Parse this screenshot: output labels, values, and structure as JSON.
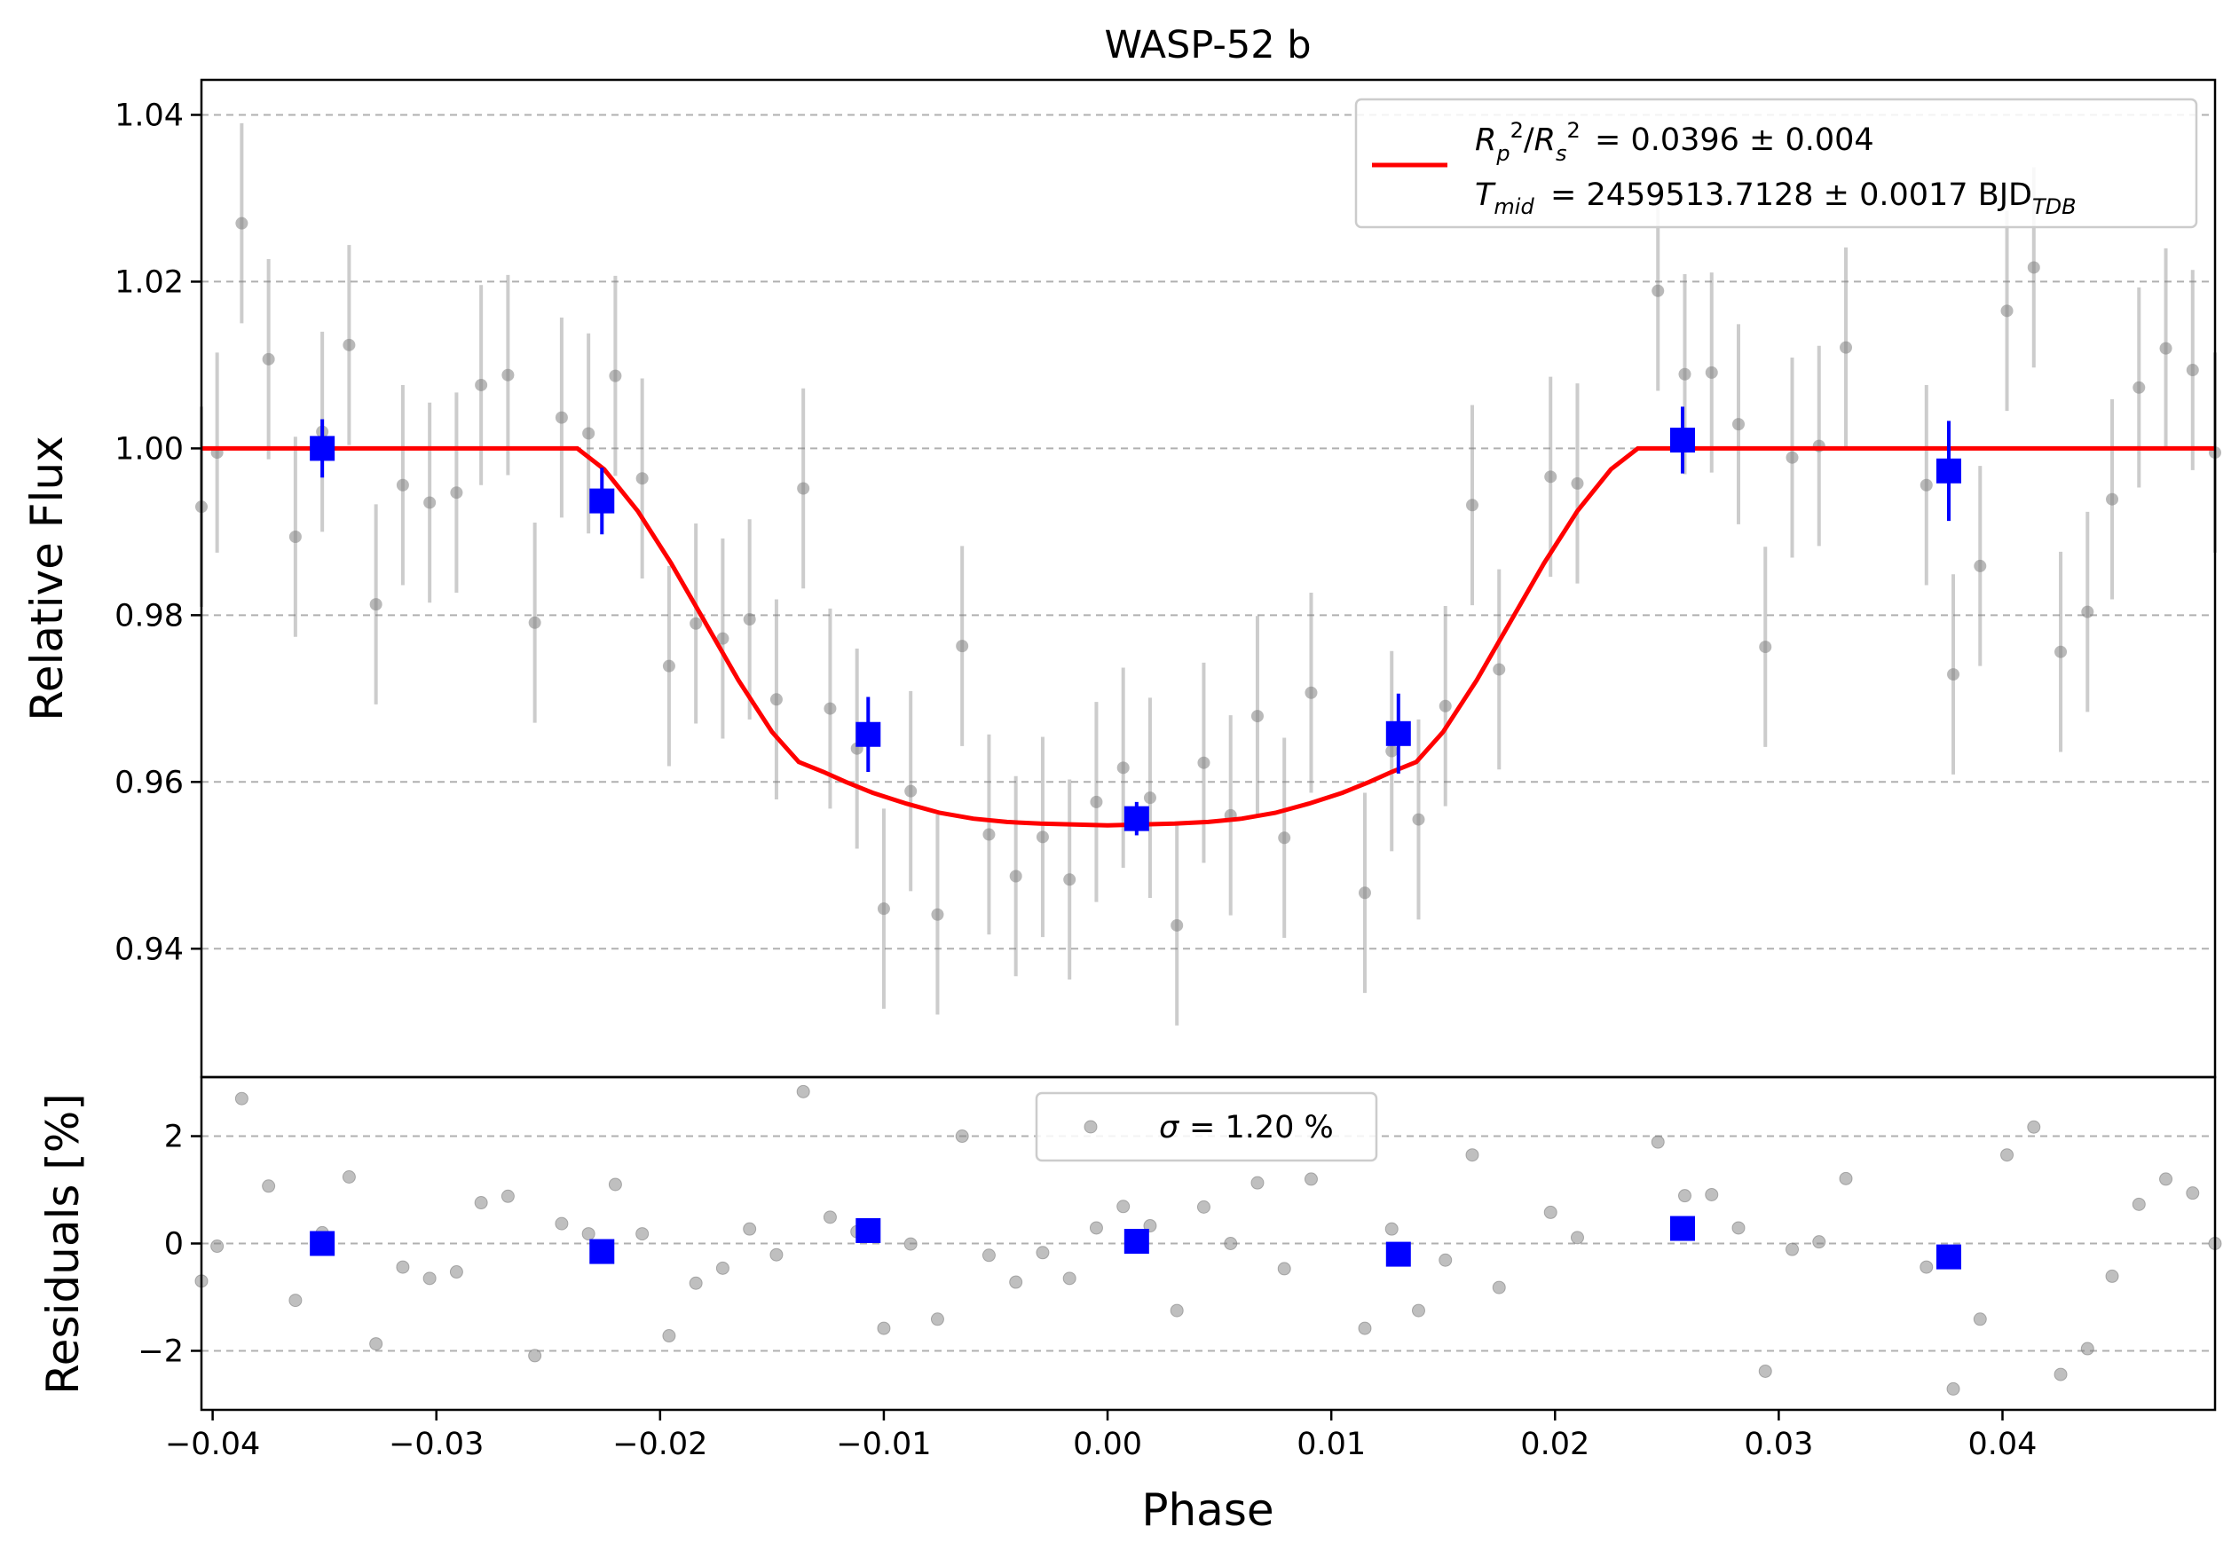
{
  "chart_data": [
    {
      "type": "scatter",
      "title": "WASP-52 b",
      "xlabel": "",
      "ylabel": "Relative Flux",
      "xlim": [
        -0.0405,
        0.0495
      ],
      "ylim": [
        0.9246,
        1.0442
      ],
      "grid": "horizontal dashed",
      "yticks": [
        0.94,
        0.96,
        0.98,
        1.0,
        1.02,
        1.04
      ],
      "ytick_labels": [
        "0.94",
        "0.96",
        "0.98",
        "1.00",
        "1.02",
        "1.04"
      ],
      "legend": {
        "placement": "top-right",
        "line1": "= 0.0396 ± 0.004",
        "line2": "= 2459513.7128 ± 0.0017 BJD",
        "line2_sub": "TDB"
      },
      "series": [
        {
          "kind": "raw",
          "color": "#808080",
          "error": 0.012,
          "points": [
            [
              -0.0405,
              0.993
            ],
            [
              -0.0398,
              0.9995
            ],
            [
              -0.0387,
              1.027
            ],
            [
              -0.0375,
              1.0107
            ],
            [
              -0.0363,
              0.9894
            ],
            [
              -0.0351,
              1.002
            ],
            [
              -0.0339,
              1.0124
            ],
            [
              -0.0327,
              0.9813
            ],
            [
              -0.0315,
              0.9956
            ],
            [
              -0.0303,
              0.9935
            ],
            [
              -0.0291,
              0.9947
            ],
            [
              -0.028,
              1.0076
            ],
            [
              -0.0268,
              1.0088
            ],
            [
              -0.0256,
              0.9791
            ],
            [
              -0.0244,
              1.0037
            ],
            [
              -0.0232,
              1.0018
            ],
            [
              -0.022,
              1.0087
            ],
            [
              -0.0208,
              0.9964
            ],
            [
              -0.0196,
              0.9739
            ],
            [
              -0.0184,
              0.979
            ],
            [
              -0.0172,
              0.9772
            ],
            [
              -0.016,
              0.9795
            ],
            [
              -0.0148,
              0.9699
            ],
            [
              -0.0136,
              0.9952
            ],
            [
              -0.0124,
              0.9688
            ],
            [
              -0.0112,
              0.964
            ],
            [
              -0.01,
              0.9448
            ],
            [
              -0.0088,
              0.9589
            ],
            [
              -0.0076,
              0.9441
            ],
            [
              -0.0065,
              0.9763
            ],
            [
              -0.0053,
              0.9537
            ],
            [
              -0.0041,
              0.9487
            ],
            [
              -0.0029,
              0.9534
            ],
            [
              -0.0017,
              0.9483
            ],
            [
              -0.0005,
              0.9576
            ],
            [
              0.0007,
              0.9617
            ],
            [
              0.0019,
              0.9581
            ],
            [
              0.0031,
              0.9428
            ],
            [
              0.0043,
              0.9623
            ],
            [
              0.0055,
              0.956
            ],
            [
              0.0067,
              0.9679
            ],
            [
              0.0079,
              0.9533
            ],
            [
              0.0091,
              0.9707
            ],
            [
              0.0115,
              0.9467
            ],
            [
              0.0127,
              0.9637
            ],
            [
              0.0139,
              0.9555
            ],
            [
              0.0151,
              0.9691
            ],
            [
              0.0163,
              0.9932
            ],
            [
              0.0175,
              0.9735
            ],
            [
              0.0198,
              0.9966
            ],
            [
              0.021,
              0.9958
            ],
            [
              0.0246,
              1.0189
            ],
            [
              0.0258,
              1.0089
            ],
            [
              0.027,
              1.0091
            ],
            [
              0.0282,
              1.0029
            ],
            [
              0.0294,
              0.9762
            ],
            [
              0.0306,
              0.9989
            ],
            [
              0.0318,
              1.0003
            ],
            [
              0.033,
              1.0121
            ],
            [
              0.0366,
              0.9956
            ],
            [
              0.0378,
              0.9729
            ],
            [
              0.039,
              0.9859
            ],
            [
              0.0402,
              1.0165
            ],
            [
              0.0414,
              1.0217
            ],
            [
              0.0426,
              0.9756
            ],
            [
              0.0438,
              0.9804
            ],
            [
              0.0449,
              0.9939
            ],
            [
              0.0461,
              1.0073
            ],
            [
              0.0473,
              1.012
            ],
            [
              0.0485,
              1.0094
            ],
            [
              0.0495,
              0.9995
            ]
          ]
        },
        {
          "kind": "binned",
          "color": "#0000ff",
          "points": [
            [
              -0.0351,
              1.0,
              0.0035
            ],
            [
              -0.0226,
              0.9937,
              0.004
            ],
            [
              -0.0107,
              0.9657,
              0.0045
            ],
            [
              0.0013,
              0.9556,
              0.002
            ],
            [
              0.013,
              0.9658,
              0.0048
            ],
            [
              0.0257,
              1.001,
              0.004
            ],
            [
              0.0376,
              0.9973,
              0.006
            ]
          ]
        },
        {
          "kind": "model",
          "color": "#ff0000",
          "x": [
            -0.0405,
            -0.0237,
            -0.0225,
            -0.021,
            -0.0195,
            -0.018,
            -0.0165,
            -0.015,
            -0.0138,
            -0.0127,
            -0.0117,
            -0.0105,
            -0.009,
            -0.0075,
            -0.006,
            -0.0045,
            -0.003,
            -0.0015,
            0.0,
            0.0015,
            0.003,
            0.0045,
            0.006,
            0.0075,
            0.009,
            0.0105,
            0.0117,
            0.0127,
            0.0138,
            0.015,
            0.0165,
            0.018,
            0.0195,
            0.021,
            0.0225,
            0.0237,
            0.0495
          ],
          "y": [
            1.0,
            1.0,
            0.9975,
            0.9925,
            0.9862,
            0.9792,
            0.9722,
            0.966,
            0.9624,
            0.9612,
            0.96,
            0.9587,
            0.9574,
            0.9563,
            0.9556,
            0.9552,
            0.955,
            0.9549,
            0.9548,
            0.9549,
            0.955,
            0.9552,
            0.9556,
            0.9563,
            0.9574,
            0.9587,
            0.96,
            0.9612,
            0.9624,
            0.966,
            0.9722,
            0.9792,
            0.9862,
            0.9925,
            0.9975,
            1.0,
            1.0
          ]
        }
      ]
    },
    {
      "type": "scatter",
      "xlabel": "Phase",
      "ylabel": "Residuals [%]",
      "xlim": [
        -0.0405,
        0.0495
      ],
      "ylim": [
        -3.1,
        3.1
      ],
      "grid": "horizontal dashed",
      "yticks": [
        -2,
        0,
        2
      ],
      "ytick_labels": [
        "−2",
        "0",
        "2"
      ],
      "xticks": [
        -0.04,
        -0.03,
        -0.02,
        -0.01,
        0.0,
        0.01,
        0.02,
        0.03,
        0.04
      ],
      "xtick_labels": [
        "−0.04",
        "−0.03",
        "−0.02",
        "−0.01",
        "0.00",
        "0.01",
        "0.02",
        "0.03",
        "0.04"
      ],
      "legend": {
        "placement": "top-center",
        "label": "= 1.20 %"
      },
      "series": [
        {
          "kind": "raw",
          "color": "#808080",
          "points": [
            [
              -0.0405,
              -0.7
            ],
            [
              -0.0398,
              -0.05
            ],
            [
              -0.0387,
              2.7
            ],
            [
              -0.0375,
              1.07
            ],
            [
              -0.0363,
              -1.06
            ],
            [
              -0.0351,
              0.2
            ],
            [
              -0.0339,
              1.24
            ],
            [
              -0.0327,
              -1.87
            ],
            [
              -0.0315,
              -0.44
            ],
            [
              -0.0303,
              -0.65
            ],
            [
              -0.0291,
              -0.53
            ],
            [
              -0.028,
              0.76
            ],
            [
              -0.0268,
              0.88
            ],
            [
              -0.0256,
              -2.09
            ],
            [
              -0.0244,
              0.37
            ],
            [
              -0.0232,
              0.18
            ],
            [
              -0.022,
              1.1
            ],
            [
              -0.0208,
              0.18
            ],
            [
              -0.0196,
              -1.72
            ],
            [
              -0.0184,
              -0.74
            ],
            [
              -0.0172,
              -0.46
            ],
            [
              -0.016,
              0.27
            ],
            [
              -0.0148,
              -0.21
            ],
            [
              -0.0136,
              2.83
            ],
            [
              -0.0124,
              0.49
            ],
            [
              -0.0112,
              0.22
            ],
            [
              -0.01,
              -1.58
            ],
            [
              -0.0088,
              -0.01
            ],
            [
              -0.0076,
              -1.41
            ],
            [
              -0.0065,
              2.0
            ],
            [
              -0.0053,
              -0.22
            ],
            [
              -0.0041,
              -0.72
            ],
            [
              -0.0029,
              -0.17
            ],
            [
              -0.0017,
              -0.65
            ],
            [
              -0.0005,
              0.29
            ],
            [
              0.0007,
              0.69
            ],
            [
              0.0019,
              0.33
            ],
            [
              0.0031,
              -1.25
            ],
            [
              0.0043,
              0.68
            ],
            [
              0.0055,
              0.0
            ],
            [
              0.0067,
              1.13
            ],
            [
              0.0079,
              -0.47
            ],
            [
              0.0091,
              1.2
            ],
            [
              0.0115,
              -1.58
            ],
            [
              0.0127,
              0.27
            ],
            [
              0.0139,
              -1.25
            ],
            [
              0.0151,
              -0.31
            ],
            [
              0.0163,
              1.65
            ],
            [
              0.0175,
              -0.82
            ],
            [
              0.0198,
              0.58
            ],
            [
              0.021,
              0.11
            ],
            [
              0.0246,
              1.89
            ],
            [
              0.0258,
              0.89
            ],
            [
              0.027,
              0.91
            ],
            [
              0.0282,
              0.29
            ],
            [
              0.0294,
              -2.38
            ],
            [
              0.0306,
              -0.11
            ],
            [
              0.0318,
              0.03
            ],
            [
              0.033,
              1.21
            ],
            [
              0.0366,
              -0.44
            ],
            [
              0.0378,
              -2.71
            ],
            [
              0.039,
              -1.41
            ],
            [
              0.0402,
              1.65
            ],
            [
              0.0414,
              2.17
            ],
            [
              0.0426,
              -2.44
            ],
            [
              0.0438,
              -1.96
            ],
            [
              0.0449,
              -0.61
            ],
            [
              0.0461,
              0.73
            ],
            [
              0.0473,
              1.2
            ],
            [
              0.0485,
              0.94
            ],
            [
              0.0495,
              0.0
            ]
          ]
        },
        {
          "kind": "binned",
          "color": "#0000ff",
          "points": [
            [
              -0.0351,
              0.0
            ],
            [
              -0.0226,
              -0.15
            ],
            [
              -0.0107,
              0.24
            ],
            [
              0.0013,
              0.04
            ],
            [
              0.013,
              -0.2
            ],
            [
              0.0257,
              0.28
            ],
            [
              0.0376,
              -0.25
            ]
          ]
        }
      ]
    }
  ]
}
